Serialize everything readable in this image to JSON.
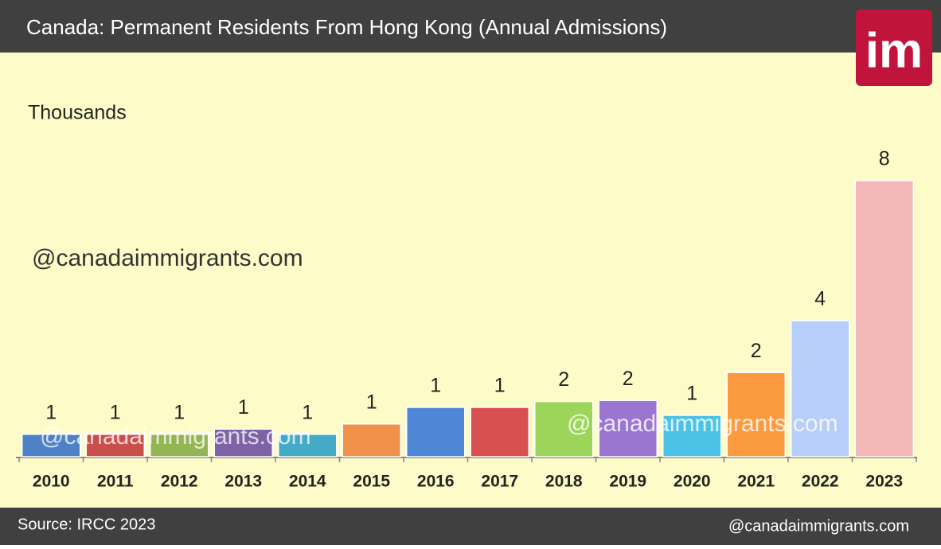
{
  "header": {
    "title": "Canada: Permanent Residents From Hong Kong (Annual Admissions)",
    "logo": "im"
  },
  "chart_data": {
    "type": "bar",
    "unit_label": "Thousands",
    "categories": [
      "2010",
      "2011",
      "2012",
      "2013",
      "2014",
      "2015",
      "2016",
      "2017",
      "2018",
      "2019",
      "2020",
      "2021",
      "2022",
      "2023"
    ],
    "values": [
      0.65,
      0.65,
      0.65,
      0.8,
      0.65,
      0.95,
      1.43,
      1.43,
      1.6,
      1.63,
      1.2,
      2.44,
      3.94,
      8.0
    ],
    "value_labels": [
      "1",
      "1",
      "1",
      "1",
      "1",
      "1",
      "1",
      "1",
      "2",
      "2",
      "1",
      "2",
      "4",
      "8"
    ],
    "colors": [
      "#4f81c7",
      "#c94f4c",
      "#93b554",
      "#7e62a6",
      "#45aac6",
      "#f0914a",
      "#4f86d6",
      "#d94f52",
      "#9dd45a",
      "#9a76d1",
      "#4cc3e6",
      "#fb9a3f",
      "#b7cdfa",
      "#f3b7b8"
    ]
  },
  "watermarks": [
    "@canadaimmigrants.com",
    "@canadaimmigrants.com",
    "@canadaimmigrants.com"
  ],
  "footer": {
    "source": "Source: IRCC 2023",
    "handle": "@canadaimmigrants.com"
  }
}
